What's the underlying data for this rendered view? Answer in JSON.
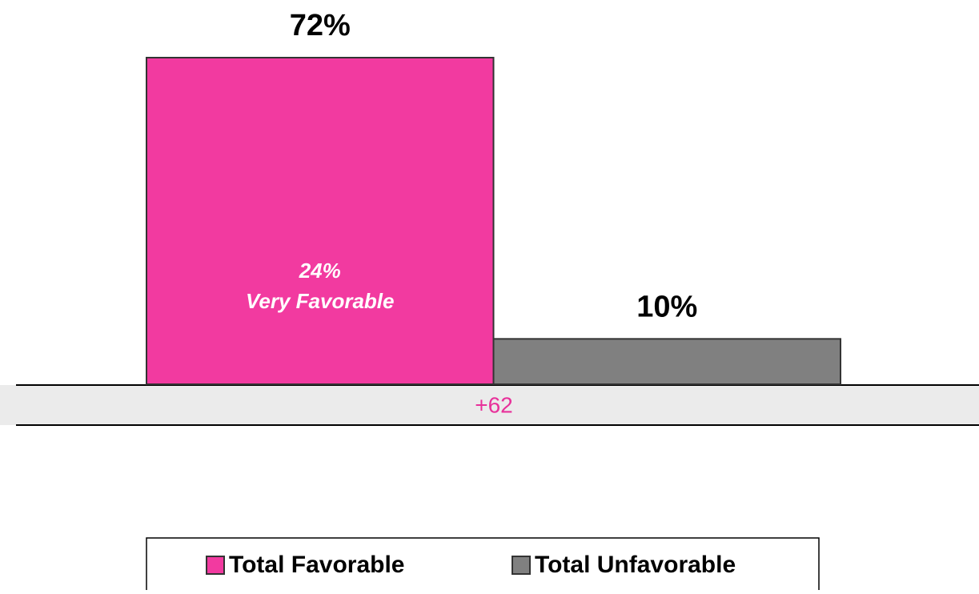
{
  "chart_data": {
    "type": "bar",
    "categories": [
      null
    ],
    "series": [
      {
        "name": "Total Favorable",
        "color": "#f23aa0",
        "values": [
          72
        ],
        "value_labels": [
          "72%"
        ]
      },
      {
        "name": "Total Unfavorable",
        "color": "#808080",
        "values": [
          10
        ],
        "value_labels": [
          "10%"
        ]
      }
    ],
    "annotations": [
      "24%",
      "Very Favorable"
    ],
    "difference_label": "+62",
    "legend": "bottom"
  }
}
